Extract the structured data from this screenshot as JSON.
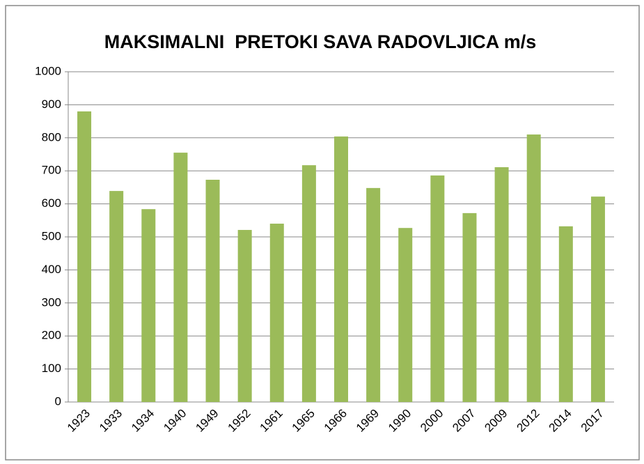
{
  "chart_data": {
    "type": "bar",
    "title": "MAKSIMALNI  PRETOKI SAVA RADOVLJICA m/s",
    "categories": [
      "1923",
      "1933",
      "1934",
      "1940",
      "1949",
      "1952",
      "1961",
      "1965",
      "1966",
      "1969",
      "1990",
      "2000",
      "2007",
      "2009",
      "2012",
      "2014",
      "2017"
    ],
    "values": [
      880,
      639,
      584,
      755,
      673,
      521,
      540,
      717,
      804,
      648,
      527,
      686,
      572,
      711,
      810,
      532,
      622
    ],
    "color": "#9bbb59",
    "ylim": [
      0,
      1000
    ],
    "yticks": [
      0,
      100,
      200,
      300,
      400,
      500,
      600,
      700,
      800,
      900,
      1000
    ],
    "grid": true
  }
}
